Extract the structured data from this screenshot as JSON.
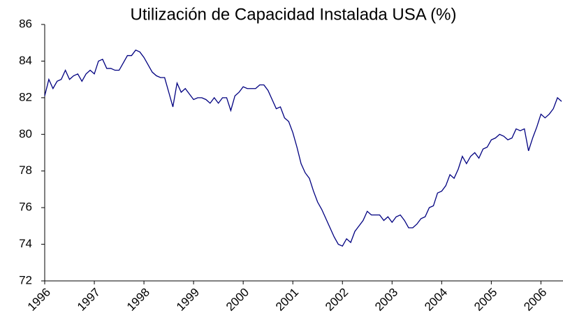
{
  "chart_data": {
    "type": "line",
    "title": "Utilización de Capacidad Instalada USA (%)",
    "categories": [
      "1996",
      null,
      null,
      null,
      null,
      null,
      null,
      null,
      null,
      null,
      null,
      null,
      "1997",
      null,
      null,
      null,
      null,
      null,
      null,
      null,
      null,
      null,
      null,
      null,
      "1998",
      null,
      null,
      null,
      null,
      null,
      null,
      null,
      null,
      null,
      null,
      null,
      "1999",
      null,
      null,
      null,
      null,
      null,
      null,
      null,
      null,
      null,
      null,
      null,
      "2000",
      null,
      null,
      null,
      null,
      null,
      null,
      null,
      null,
      null,
      null,
      null,
      "2001",
      null,
      null,
      null,
      null,
      null,
      null,
      null,
      null,
      null,
      null,
      null,
      "2002",
      null,
      null,
      null,
      null,
      null,
      null,
      null,
      null,
      null,
      null,
      null,
      "2003",
      null,
      null,
      null,
      null,
      null,
      null,
      null,
      null,
      null,
      null,
      null,
      "2004",
      null,
      null,
      null,
      null,
      null,
      null,
      null,
      null,
      null,
      null,
      null,
      "2005",
      null,
      null,
      null,
      null,
      null,
      null,
      null,
      null,
      null,
      null,
      null,
      "2006",
      null,
      null,
      null,
      null,
      null
    ],
    "series": [
      {
        "color": "#000080",
        "values": [
          82.1,
          83.0,
          82.5,
          82.9,
          83.0,
          83.5,
          83.0,
          83.2,
          83.3,
          82.9,
          83.3,
          83.5,
          83.3,
          84.0,
          84.1,
          83.6,
          83.6,
          83.5,
          83.5,
          83.9,
          84.3,
          84.3,
          84.6,
          84.5,
          84.2,
          83.8,
          83.4,
          83.2,
          83.1,
          83.1,
          82.3,
          81.5,
          82.8,
          82.3,
          82.5,
          82.2,
          81.9,
          82.0,
          82.0,
          81.9,
          81.7,
          82.0,
          81.7,
          82.0,
          82.0,
          81.3,
          82.1,
          82.3,
          82.6,
          82.5,
          82.5,
          82.5,
          82.7,
          82.7,
          82.4,
          81.9,
          81.4,
          81.5,
          80.9,
          80.7,
          80.1,
          79.3,
          78.4,
          77.9,
          77.6,
          76.9,
          76.3,
          75.9,
          75.4,
          74.9,
          74.4,
          74.0,
          73.9,
          74.3,
          74.1,
          74.7,
          75.0,
          75.3,
          75.8,
          75.6,
          75.6,
          75.6,
          75.3,
          75.5,
          75.2,
          75.5,
          75.6,
          75.3,
          74.9,
          74.9,
          75.1,
          75.4,
          75.5,
          76.0,
          76.1,
          76.8,
          76.9,
          77.2,
          77.8,
          77.6,
          78.1,
          78.8,
          78.4,
          78.8,
          79.0,
          78.7,
          79.2,
          79.3,
          79.7,
          79.8,
          80.0,
          79.9,
          79.7,
          79.8,
          80.3,
          80.2,
          80.3,
          79.1,
          79.8,
          80.4,
          81.1,
          80.9,
          81.1,
          81.4,
          82.0,
          81.8
        ]
      }
    ],
    "ylim": [
      72,
      86
    ],
    "yticks": [
      72,
      74,
      76,
      78,
      80,
      82,
      84,
      86
    ],
    "grid": false
  }
}
